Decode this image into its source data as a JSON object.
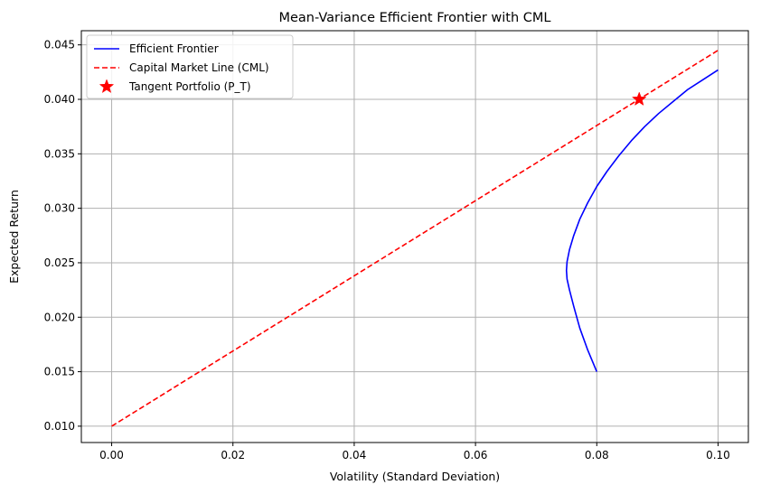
{
  "chart_data": {
    "type": "line",
    "title": "Mean-Variance Efficient Frontier with CML",
    "xlabel": "Volatility (Standard Deviation)",
    "ylabel": "Expected Return",
    "xlim": [
      -0.005,
      0.105
    ],
    "ylim": [
      0.0085,
      0.0463
    ],
    "xticks": [
      0.0,
      0.02,
      0.04,
      0.06,
      0.08,
      0.1
    ],
    "xtick_labels": [
      "0.00",
      "0.02",
      "0.04",
      "0.06",
      "0.08",
      "0.10"
    ],
    "yticks": [
      0.01,
      0.015,
      0.02,
      0.025,
      0.03,
      0.035,
      0.04,
      0.045
    ],
    "ytick_labels": [
      "0.010",
      "0.015",
      "0.020",
      "0.025",
      "0.030",
      "0.035",
      "0.040",
      "0.045"
    ],
    "grid": true,
    "legend_position": "top-left",
    "series": [
      {
        "name": "Efficient Frontier",
        "style": "solid",
        "color": "#0000ff",
        "x": [
          0.08,
          0.0785,
          0.0772,
          0.0762,
          0.0755,
          0.0751,
          0.075,
          0.0751,
          0.0755,
          0.0762,
          0.0772,
          0.0785,
          0.08,
          0.0817,
          0.0836,
          0.0857,
          0.0879,
          0.0902,
          0.0926,
          0.095,
          0.0975,
          0.1
        ],
        "y": [
          0.015,
          0.017,
          0.019,
          0.021,
          0.0225,
          0.0235,
          0.0243,
          0.0251,
          0.0262,
          0.0275,
          0.029,
          0.0305,
          0.032,
          0.0334,
          0.0348,
          0.0362,
          0.0375,
          0.0387,
          0.0398,
          0.0409,
          0.0418,
          0.0427
        ]
      },
      {
        "name": "Capital Market Line (CML)",
        "style": "dashed",
        "color": "#ff0000",
        "x": [
          0.0,
          0.1
        ],
        "y": [
          0.01,
          0.0445
        ]
      },
      {
        "name": "Tangent Portfolio (P_T)",
        "style": "marker-star",
        "color": "#ff0000",
        "x": [
          0.087
        ],
        "y": [
          0.04
        ]
      }
    ]
  }
}
